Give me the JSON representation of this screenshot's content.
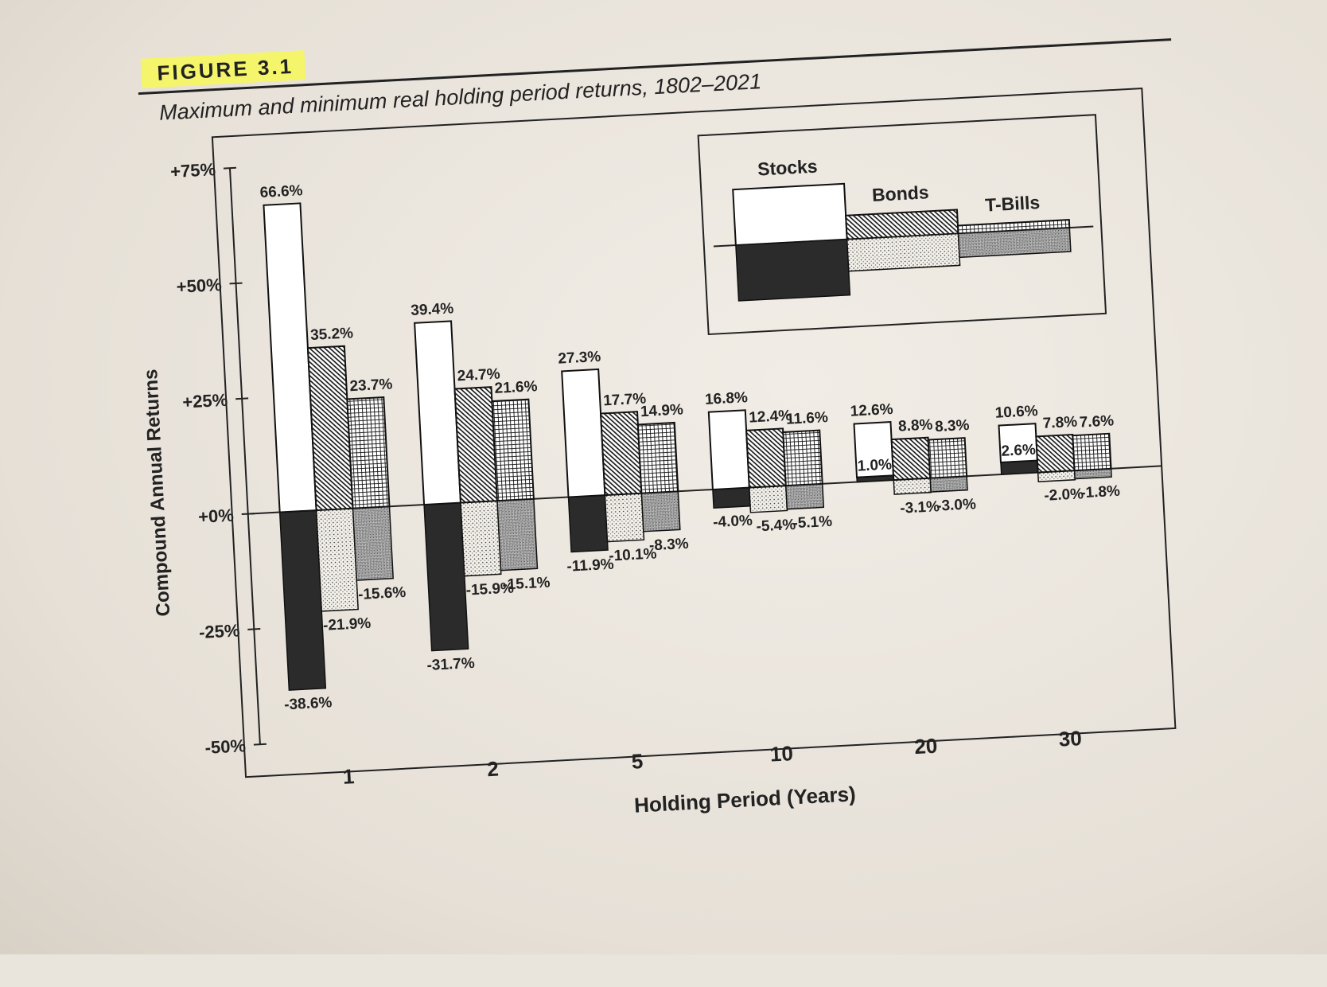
{
  "figure": {
    "label": "FIGURE 3.1",
    "title": "Maximum and minimum real holding period returns, 1802–2021"
  },
  "chart_data": {
    "type": "bar",
    "title": "Maximum and minimum real holding period returns, 1802–2021",
    "xlabel": "Holding Period (Years)",
    "ylabel": "Compound Annual Returns",
    "ylim": [
      -50,
      75
    ],
    "yticks": [
      "+75%",
      "+50%",
      "+25%",
      "+0%",
      "-25%",
      "-50%"
    ],
    "ytick_values": [
      75,
      50,
      25,
      0,
      -25,
      -50
    ],
    "categories": [
      "1",
      "2",
      "5",
      "10",
      "20",
      "30"
    ],
    "legend": {
      "placement": "top-right",
      "entries": [
        "Stocks",
        "Bonds",
        "T-Bills"
      ]
    },
    "series": [
      {
        "name": "Stocks",
        "max": [
          66.6,
          39.4,
          27.3,
          16.8,
          12.6,
          10.6
        ],
        "min": [
          -38.6,
          -31.7,
          -11.9,
          -4.0,
          1.0,
          2.6
        ],
        "max_labels": [
          "66.6%",
          "39.4%",
          "27.3%",
          "16.8%",
          "12.6%",
          "10.6%"
        ],
        "min_labels": [
          "-38.6%",
          "-31.7%",
          "-11.9%",
          "-4.0%",
          "1.0%",
          "2.6%"
        ]
      },
      {
        "name": "Bonds",
        "max": [
          35.2,
          24.7,
          17.7,
          12.4,
          8.8,
          7.8
        ],
        "min": [
          -21.9,
          -15.9,
          -10.1,
          -5.4,
          -3.1,
          -2.0
        ],
        "max_labels": [
          "35.2%",
          "24.7%",
          "17.7%",
          "12.4%",
          "8.8%",
          "7.8%"
        ],
        "min_labels": [
          "-21.9%",
          "-15.9%",
          "-10.1%",
          "-5.4%",
          "-3.1%",
          "-2.0%"
        ]
      },
      {
        "name": "T-Bills",
        "max": [
          23.7,
          21.6,
          14.9,
          11.6,
          8.3,
          7.6
        ],
        "min": [
          -15.6,
          -15.1,
          -8.3,
          -5.1,
          -3.0,
          -1.8
        ],
        "max_labels": [
          "23.7%",
          "21.6%",
          "14.9%",
          "11.6%",
          "8.3%",
          "7.6%"
        ],
        "min_labels": [
          "-15.6%",
          "-15.1%",
          "-8.3%",
          "-5.1%",
          "-3.0%",
          "-1.8%"
        ]
      }
    ],
    "grid": false
  }
}
